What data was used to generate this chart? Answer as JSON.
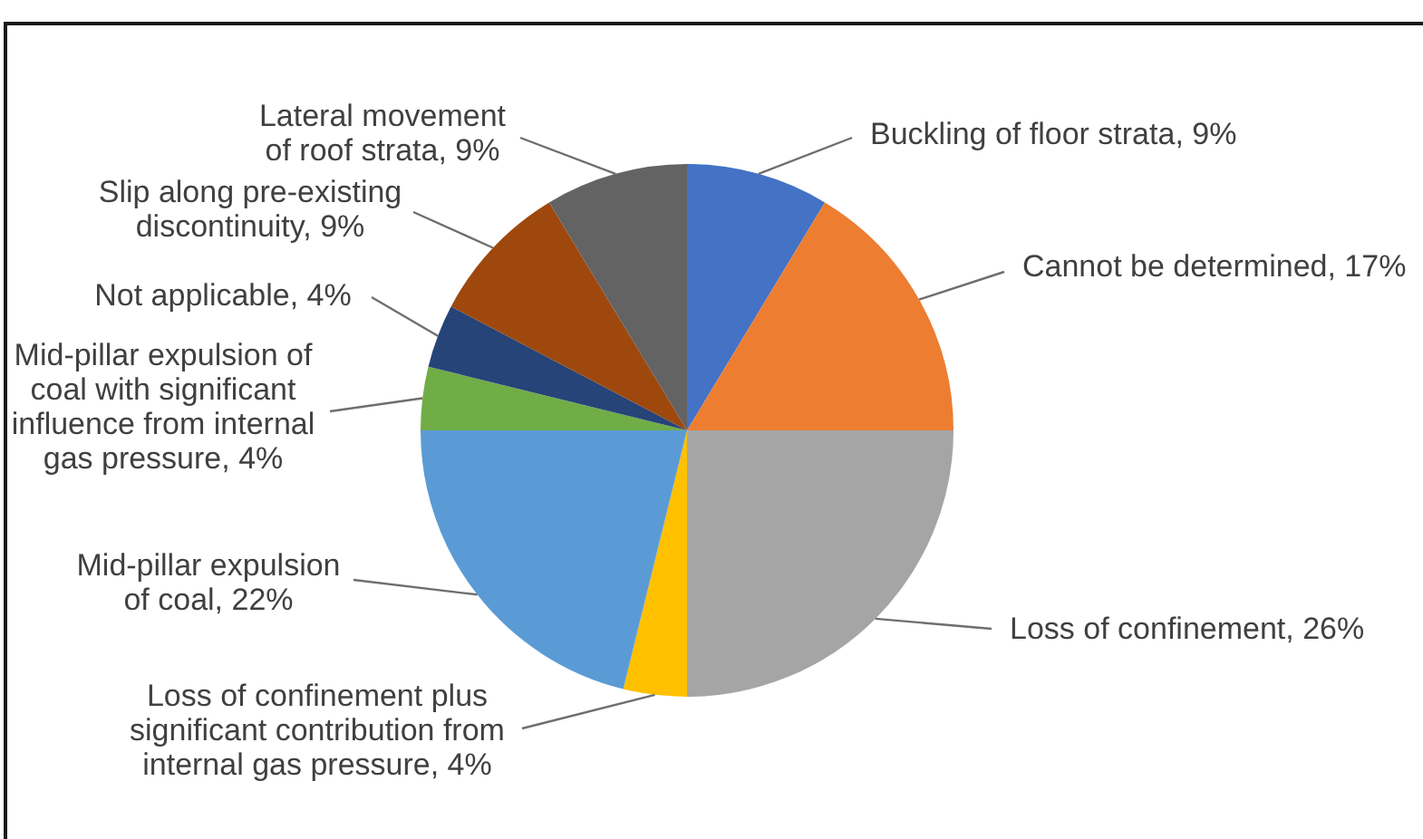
{
  "chart_data": {
    "type": "pie",
    "categories": [
      "Buckling of floor strata",
      "Cannot be determined",
      "Loss of confinement",
      "Loss of confinement plus significant contribution from internal gas pressure",
      "Mid-pillar expulsion of coal",
      "Mid-pillar expulsion of coal with significant influence from internal gas pressure",
      "Not applicable",
      "Slip along pre-existing discontinuity",
      "Lateral movement of roof strata"
    ],
    "values": [
      9,
      17,
      26,
      4,
      22,
      4,
      4,
      9,
      9
    ],
    "value_labels": [
      "9%",
      "17%",
      "26%",
      "4%",
      "22%",
      "4%",
      "4%",
      "9%",
      "9%"
    ],
    "colors": [
      "#4472c4",
      "#ed7d31",
      "#a5a5a5",
      "#ffc000",
      "#5b9bd5",
      "#70ad47",
      "#264478",
      "#9e480e",
      "#636363"
    ]
  }
}
